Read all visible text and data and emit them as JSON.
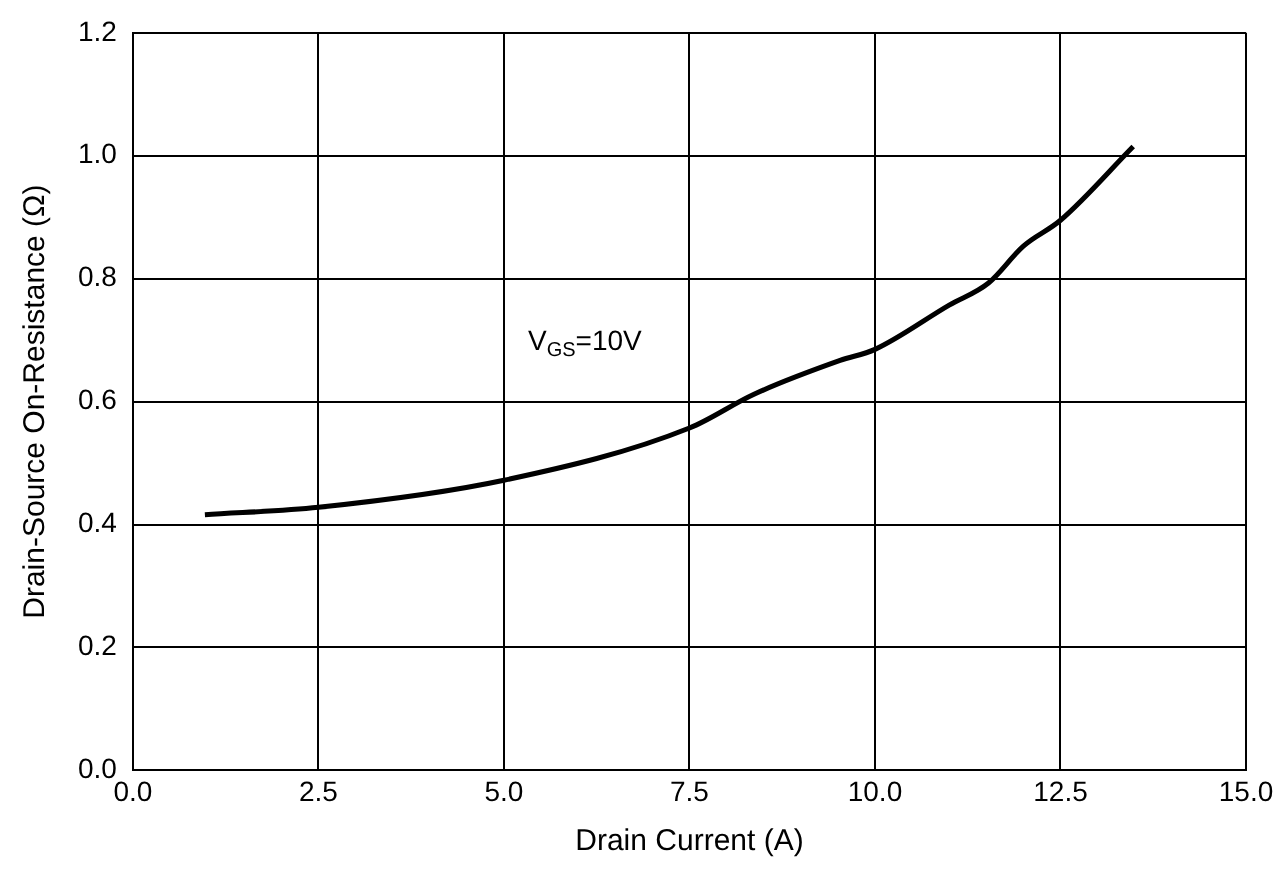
{
  "chart_data": {
    "type": "line",
    "xlabel": "Drain Current (A)",
    "ylabel": "Drain-Source On-Resistance (Ω)",
    "x": [
      0.97,
      2.5,
      5.0,
      7.5,
      8.37,
      9.53,
      10.0,
      11.0,
      11.53,
      12.0,
      12.5,
      13.48
    ],
    "series": [
      {
        "color": "#000000",
        "values": [
          0.416,
          0.428,
          0.472,
          0.557,
          0.612,
          0.667,
          0.685,
          0.757,
          0.793,
          0.853,
          0.895,
          1.015
        ]
      }
    ],
    "xlim": [
      0,
      15
    ],
    "xticks": [
      {
        "value": 0,
        "label": "0.0"
      },
      {
        "value": 2.5,
        "label": "2.5"
      },
      {
        "value": 5,
        "label": "5.0"
      },
      {
        "value": 7.5,
        "label": "7.5"
      },
      {
        "value": 10,
        "label": "10.0"
      },
      {
        "value": 12.5,
        "label": "12.5"
      },
      {
        "value": 15,
        "label": "15.0"
      }
    ],
    "ylim": [
      0,
      1.2
    ],
    "yticks": [
      {
        "value": 0,
        "label": "0.0"
      },
      {
        "value": 0.2,
        "label": "0.2"
      },
      {
        "value": 0.4,
        "label": "0.4"
      },
      {
        "value": 0.6,
        "label": "0.6"
      },
      {
        "value": 0.8,
        "label": "0.8"
      },
      {
        "value": 1.0,
        "label": "1.0"
      },
      {
        "value": 1.2,
        "label": "1.2"
      }
    ],
    "annotations": [
      "V$_{GS}$=10V"
    ],
    "grid": true,
    "legend": false,
    "marker": "none",
    "line_style": "solid"
  }
}
